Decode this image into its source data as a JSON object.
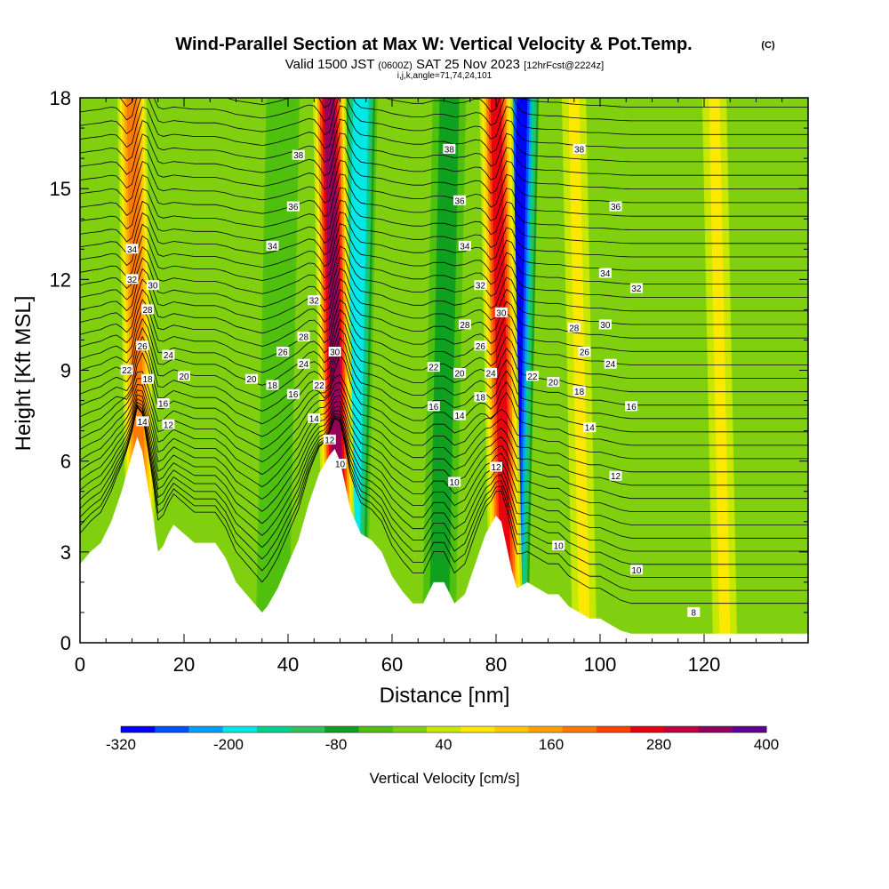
{
  "title": "Wind-Parallel Section at Max W: Vertical Velocity & Pot.Temp.",
  "copyright": "(C)",
  "subtitle_valid": "Valid 1500 JST",
  "subtitle_z": "(0600Z)",
  "subtitle_date": "SAT 25 Nov 2023",
  "subtitle_fcst": "[12hrFcst@2224z]",
  "subtitle_ijk": "i,j,k,angle=71,74,24,101",
  "chart_data": {
    "type": "heatmap",
    "xlabel": "Distance [nm]",
    "ylabel": "Height [Kft MSL]",
    "xlim": [
      0,
      140
    ],
    "ylim": [
      0,
      18
    ],
    "x_ticks": [
      0,
      20,
      40,
      60,
      80,
      100,
      120
    ],
    "y_ticks": [
      0,
      3,
      6,
      9,
      12,
      15,
      18
    ],
    "colorbar": {
      "label": "Vertical Velocity [cm/s]",
      "tick_labels": [
        "-320",
        "-200",
        "-80",
        "40",
        "160",
        "280",
        "400"
      ],
      "levels": [
        -320,
        -280,
        -240,
        -200,
        -160,
        -120,
        -80,
        -40,
        0,
        40,
        80,
        120,
        160,
        200,
        240,
        280,
        320,
        360,
        400
      ],
      "colors": [
        "#0000ff",
        "#0050ff",
        "#00a0ff",
        "#00e8e8",
        "#00d090",
        "#30c060",
        "#10a020",
        "#50c010",
        "#80d010",
        "#c8e800",
        "#ffe800",
        "#ffc800",
        "#ffa000",
        "#ff7800",
        "#ff4000",
        "#e80010",
        "#c00040",
        "#900060",
        "#600090"
      ]
    },
    "terrain_profile": {
      "x": [
        0,
        2,
        4,
        6,
        8,
        9,
        10,
        11,
        12,
        13,
        14,
        15,
        16,
        17,
        18,
        20,
        22,
        24,
        26,
        28,
        30,
        32,
        34,
        35,
        36,
        38,
        40,
        42,
        44,
        46,
        48,
        49,
        50,
        51,
        52,
        54,
        56,
        58,
        60,
        62,
        64,
        66,
        68,
        70,
        72,
        74,
        76,
        78,
        80,
        81,
        82,
        83,
        84,
        86,
        88,
        90,
        92,
        94,
        96,
        98,
        100,
        102,
        104,
        106,
        108,
        110,
        120,
        130,
        140
      ],
      "height_kft": [
        2.6,
        3.0,
        3.3,
        4.0,
        5.0,
        5.6,
        6.2,
        6.8,
        6.3,
        5.2,
        4.2,
        3.0,
        3.2,
        3.6,
        3.9,
        3.6,
        3.3,
        3.3,
        3.3,
        2.8,
        2.0,
        1.6,
        1.2,
        1.0,
        1.2,
        1.8,
        2.6,
        3.4,
        4.6,
        5.6,
        6.2,
        6.4,
        6.0,
        5.2,
        4.4,
        3.6,
        3.4,
        3.0,
        2.2,
        1.7,
        1.3,
        1.3,
        2.0,
        2.0,
        1.3,
        1.6,
        2.6,
        3.6,
        4.2,
        4.0,
        3.2,
        2.4,
        1.8,
        2.0,
        1.8,
        1.6,
        1.6,
        1.2,
        1.0,
        0.8,
        0.8,
        0.6,
        0.4,
        0.3,
        0.3,
        0.3,
        0.3,
        0.3,
        0.3
      ]
    },
    "updraft_bands": [
      {
        "x": 11,
        "w_cms": 200
      },
      {
        "x": 49,
        "w_cms": 360
      },
      {
        "x": 81,
        "w_cms": 300
      },
      {
        "x": 96,
        "w_cms": 80
      },
      {
        "x": 123,
        "w_cms": 80
      }
    ],
    "downdraft_bands": [
      {
        "x": 53,
        "w_cms": -200
      },
      {
        "x": 84,
        "w_cms": -320
      },
      {
        "x": 38,
        "w_cms": -40
      },
      {
        "x": 70,
        "w_cms": -80
      }
    ],
    "isentrope_labels": [
      {
        "text": "34",
        "x": 10,
        "y": 13.0
      },
      {
        "text": "32",
        "x": 10,
        "y": 12.0
      },
      {
        "text": "30",
        "x": 14,
        "y": 11.8
      },
      {
        "text": "28",
        "x": 13,
        "y": 11.0
      },
      {
        "text": "26",
        "x": 12,
        "y": 9.8
      },
      {
        "text": "24",
        "x": 17,
        "y": 9.5
      },
      {
        "text": "22",
        "x": 9,
        "y": 9.0
      },
      {
        "text": "20",
        "x": 20,
        "y": 8.8
      },
      {
        "text": "18",
        "x": 13,
        "y": 8.7
      },
      {
        "text": "16",
        "x": 16,
        "y": 7.9
      },
      {
        "text": "14",
        "x": 12,
        "y": 7.3
      },
      {
        "text": "12",
        "x": 17,
        "y": 7.2
      },
      {
        "text": "38",
        "x": 42,
        "y": 16.1
      },
      {
        "text": "36",
        "x": 41,
        "y": 14.4
      },
      {
        "text": "34",
        "x": 37,
        "y": 13.1
      },
      {
        "text": "32",
        "x": 45,
        "y": 11.3
      },
      {
        "text": "28",
        "x": 43,
        "y": 10.1
      },
      {
        "text": "26",
        "x": 39,
        "y": 9.6
      },
      {
        "text": "24",
        "x": 43,
        "y": 9.2
      },
      {
        "text": "22",
        "x": 46,
        "y": 8.5
      },
      {
        "text": "20",
        "x": 33,
        "y": 8.7
      },
      {
        "text": "18",
        "x": 37,
        "y": 8.5
      },
      {
        "text": "16",
        "x": 41,
        "y": 8.2
      },
      {
        "text": "14",
        "x": 45,
        "y": 7.4
      },
      {
        "text": "12",
        "x": 48,
        "y": 6.7
      },
      {
        "text": "10",
        "x": 50,
        "y": 5.9
      },
      {
        "text": "30",
        "x": 49,
        "y": 9.6
      },
      {
        "text": "38",
        "x": 71,
        "y": 16.3
      },
      {
        "text": "36",
        "x": 73,
        "y": 14.6
      },
      {
        "text": "34",
        "x": 74,
        "y": 13.1
      },
      {
        "text": "32",
        "x": 77,
        "y": 11.8
      },
      {
        "text": "30",
        "x": 81,
        "y": 10.9
      },
      {
        "text": "28",
        "x": 74,
        "y": 10.5
      },
      {
        "text": "26",
        "x": 77,
        "y": 9.8
      },
      {
        "text": "24",
        "x": 79,
        "y": 8.9
      },
      {
        "text": "22",
        "x": 68,
        "y": 9.1
      },
      {
        "text": "20",
        "x": 73,
        "y": 8.9
      },
      {
        "text": "18",
        "x": 77,
        "y": 8.1
      },
      {
        "text": "16",
        "x": 68,
        "y": 7.8
      },
      {
        "text": "14",
        "x": 73,
        "y": 7.5
      },
      {
        "text": "12",
        "x": 80,
        "y": 5.8
      },
      {
        "text": "10",
        "x": 72,
        "y": 5.3
      },
      {
        "text": "22",
        "x": 87,
        "y": 8.8
      },
      {
        "text": "20",
        "x": 91,
        "y": 8.6
      },
      {
        "text": "18",
        "x": 96,
        "y": 8.3
      },
      {
        "text": "38",
        "x": 96,
        "y": 16.3
      },
      {
        "text": "36",
        "x": 103,
        "y": 14.4
      },
      {
        "text": "34",
        "x": 101,
        "y": 12.2
      },
      {
        "text": "32",
        "x": 107,
        "y": 11.7
      },
      {
        "text": "30",
        "x": 101,
        "y": 10.5
      },
      {
        "text": "28",
        "x": 95,
        "y": 10.4
      },
      {
        "text": "26",
        "x": 97,
        "y": 9.6
      },
      {
        "text": "24",
        "x": 102,
        "y": 9.2
      },
      {
        "text": "16",
        "x": 106,
        "y": 7.8
      },
      {
        "text": "14",
        "x": 98,
        "y": 7.1
      },
      {
        "text": "12",
        "x": 103,
        "y": 5.5
      },
      {
        "text": "10",
        "x": 92,
        "y": 3.2
      },
      {
        "text": "10",
        "x": 107,
        "y": 2.4
      },
      {
        "text": "8",
        "x": 118,
        "y": 1.0
      }
    ]
  }
}
